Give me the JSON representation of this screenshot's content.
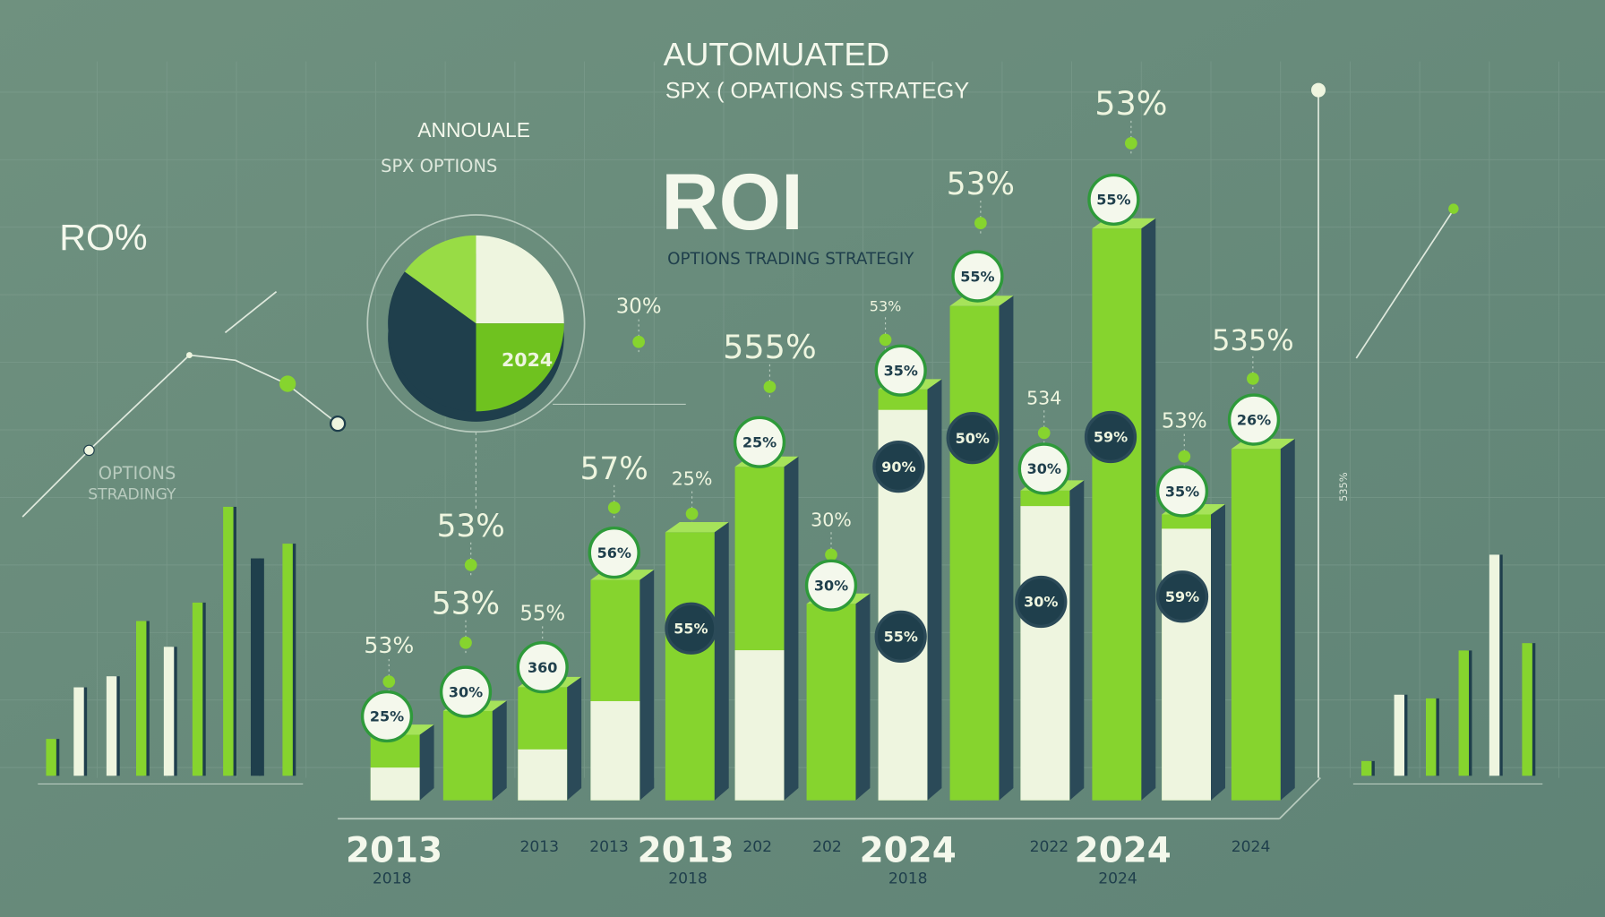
{
  "header": {
    "title_line1": "AUTOMUATED",
    "title_line2": "SPX ( OPATIONS STRATEGY",
    "roi": "ROI",
    "subtitle": "OPTIONS TRADING STRATEGIY",
    "annual": "ANNOUALE",
    "spx_options": "SPX OPTIONS",
    "left_roi": "RO%",
    "left_caption_1": "OPTIONS",
    "left_caption_2": "STRADINGY",
    "pie_label": "2024",
    "vertical_tick_label": "535%"
  },
  "colors": {
    "background": "#688a7b",
    "green": "#86d42e",
    "white": "#eef5df",
    "dark": "#1f3f4c",
    "shadow": "#2b4a58"
  },
  "chart_data": [
    {
      "type": "bar",
      "title": "ROI",
      "values": [
        11,
        15,
        19,
        37,
        45,
        56,
        33,
        69,
        83,
        52,
        96,
        48,
        59
      ],
      "white_fraction": [
        0.5,
        0,
        0.45,
        0.45,
        0,
        0.45,
        0,
        0.95,
        0,
        0.95,
        0,
        0.95,
        0
      ],
      "ylim": [
        0,
        100
      ],
      "badges": [
        {
          "text": "25%",
          "style": "light"
        },
        {
          "text": "30%",
          "style": "light"
        },
        {
          "text": "360",
          "style": "light"
        },
        {
          "text": "56%",
          "style": "light"
        },
        {
          "text": "55%",
          "style": "dark"
        },
        {
          "text": "25%",
          "style": "light"
        },
        {
          "text": "30%",
          "style": "light"
        },
        {
          "text": "35%",
          "style": "light"
        },
        {
          "text": "90%",
          "style": "dark"
        },
        {
          "text": "55%",
          "style": "dark"
        },
        {
          "text": "55%",
          "style": "light"
        },
        {
          "text": "50%",
          "style": "dark"
        },
        {
          "text": "30%",
          "style": "light"
        },
        {
          "text": "30%",
          "style": "dark"
        },
        {
          "text": "55%",
          "style": "light"
        },
        {
          "text": "59%",
          "style": "dark"
        },
        {
          "text": "35%",
          "style": "light"
        },
        {
          "text": "59%",
          "style": "dark"
        },
        {
          "text": "26%",
          "style": "light"
        }
      ],
      "floating_labels": [
        "53%",
        "53%",
        "55%",
        "53%",
        "57%",
        "25%",
        "555%",
        "30%",
        "53%",
        "53%",
        "535%",
        "534",
        "53%",
        "30%",
        "53%"
      ],
      "year_labels": [
        {
          "text": "2013",
          "size": "large"
        },
        {
          "text": "2018",
          "size": "small"
        },
        {
          "text": "2013",
          "size": "small"
        },
        {
          "text": "2013",
          "size": "small"
        },
        {
          "text": "2013",
          "size": "large"
        },
        {
          "text": "2018",
          "size": "small"
        },
        {
          "text": "202",
          "size": "small"
        },
        {
          "text": "202",
          "size": "small"
        },
        {
          "text": "2024",
          "size": "large"
        },
        {
          "text": "2018",
          "size": "small"
        },
        {
          "text": "2022",
          "size": "small"
        },
        {
          "text": "2024",
          "size": "large"
        },
        {
          "text": "2024",
          "size": "small"
        },
        {
          "text": "2024",
          "size": "small"
        }
      ]
    },
    {
      "type": "bar",
      "values": [
        10,
        24,
        27,
        42,
        35,
        47,
        73,
        59,
        63
      ],
      "colors": [
        "green",
        "white",
        "white",
        "green",
        "white",
        "green",
        "green",
        "dark",
        "green"
      ]
    },
    {
      "type": "bar",
      "values": [
        4,
        22,
        21,
        34,
        60,
        36
      ],
      "colors": [
        "green",
        "white",
        "green",
        "green",
        "white",
        "green"
      ]
    },
    {
      "type": "pie",
      "slices": [
        {
          "value": 25,
          "color": "white"
        },
        {
          "value": 25,
          "color": "green"
        },
        {
          "value": 35,
          "color": "dark"
        },
        {
          "value": 15,
          "color": "lightgreen"
        }
      ]
    }
  ]
}
